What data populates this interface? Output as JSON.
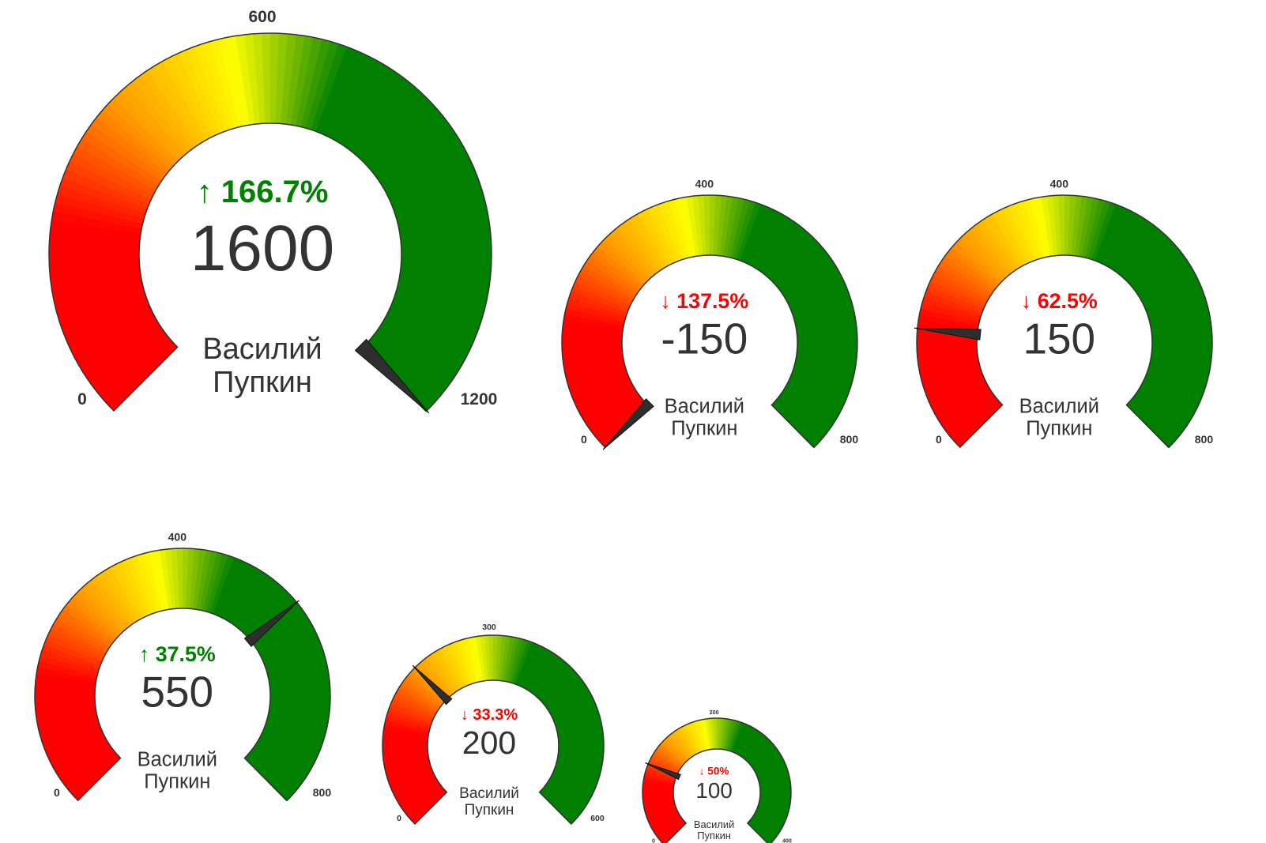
{
  "chart_data": [
    {
      "type": "gauge",
      "min": 0,
      "max": 1200,
      "mid": 600,
      "min_label": "0",
      "mid_label": "600",
      "max_label": "1200",
      "value": 1600,
      "value_label": "1600",
      "change_direction": "up",
      "change_label": "↑ 166.7%",
      "change_pct": 166.7,
      "name_lines": [
        "Василий",
        "Пупкин"
      ]
    },
    {
      "type": "gauge",
      "min": 0,
      "max": 800,
      "mid": 400,
      "min_label": "0",
      "mid_label": "400",
      "max_label": "800",
      "value": -150,
      "value_label": "-150",
      "change_direction": "down",
      "change_label": "↓ 137.5%",
      "change_pct": 137.5,
      "name_lines": [
        "Василий",
        "Пупкин"
      ]
    },
    {
      "type": "gauge",
      "min": 0,
      "max": 800,
      "mid": 400,
      "min_label": "0",
      "mid_label": "400",
      "max_label": "800",
      "value": 150,
      "value_label": "150",
      "change_direction": "down",
      "change_label": "↓ 62.5%",
      "change_pct": 62.5,
      "name_lines": [
        "Василий",
        "Пупкин"
      ]
    },
    {
      "type": "gauge",
      "min": 0,
      "max": 800,
      "mid": 400,
      "min_label": "0",
      "mid_label": "400",
      "max_label": "800",
      "value": 550,
      "value_label": "550",
      "change_direction": "up",
      "change_label": "↑ 37.5%",
      "change_pct": 37.5,
      "name_lines": [
        "Василий",
        "Пупкин"
      ]
    },
    {
      "type": "gauge",
      "min": 0,
      "max": 600,
      "mid": 300,
      "min_label": "0",
      "mid_label": "300",
      "max_label": "600",
      "value": 200,
      "value_label": "200",
      "change_direction": "down",
      "change_label": "↓ 33.3%",
      "change_pct": 33.3,
      "name_lines": [
        "Василий",
        "Пупкин"
      ]
    },
    {
      "type": "gauge",
      "min": 0,
      "max": 400,
      "mid": 200,
      "min_label": "0",
      "mid_label": "200",
      "max_label": "400",
      "value": 100,
      "value_label": "100",
      "change_direction": "down",
      "change_label": "↓ 50%",
      "change_pct": 50,
      "name_lines": [
        "Василий",
        "Пупкин"
      ]
    }
  ],
  "colors": {
    "red": "#ff0000",
    "orange": "#ff9900",
    "yellow": "#ffff00",
    "green": "#007f00",
    "up": "#008000",
    "down": "#ff0000",
    "needle": "#2e2e2e"
  }
}
